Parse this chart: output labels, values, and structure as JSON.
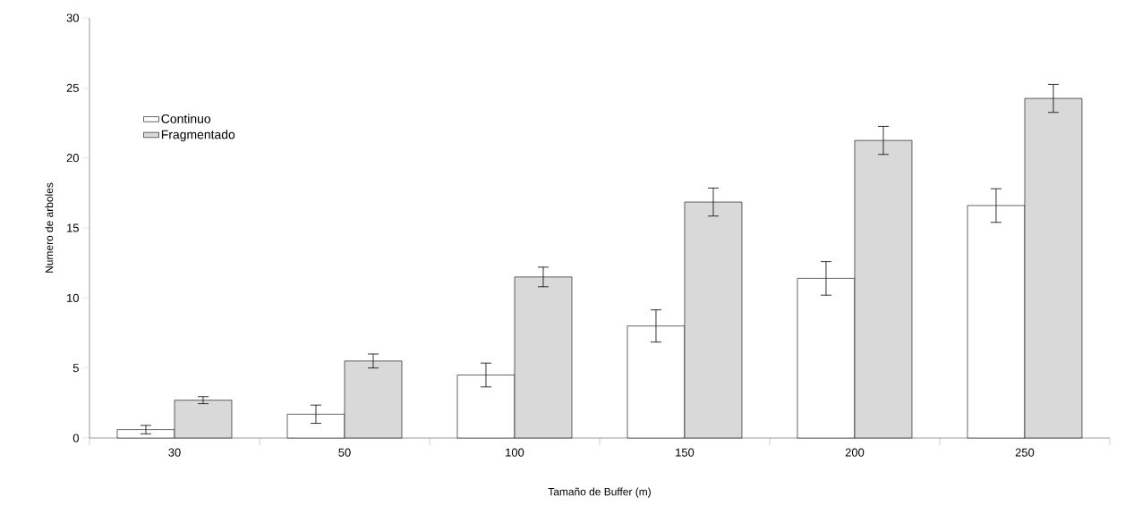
{
  "chart_data": {
    "type": "bar",
    "xlabel": "Tamaño de Buffer (m)",
    "ylabel": "Numero de arboles",
    "categories": [
      "30",
      "50",
      "100",
      "150",
      "200",
      "250"
    ],
    "series": [
      {
        "name": "Continuo",
        "color": "#ffffff",
        "values": [
          0.6,
          1.7,
          4.5,
          8.0,
          11.4,
          16.6
        ],
        "errors": [
          0.3,
          0.65,
          0.85,
          1.15,
          1.2,
          1.2
        ]
      },
      {
        "name": "Fragmentado",
        "color": "#d9d9d9",
        "values": [
          2.7,
          5.5,
          11.5,
          16.85,
          21.25,
          24.25
        ],
        "errors": [
          0.25,
          0.5,
          0.7,
          1.0,
          1.0,
          1.0
        ]
      }
    ],
    "ylim": [
      0,
      30
    ],
    "yticks": [
      0,
      5,
      10,
      15,
      20,
      25,
      30
    ],
    "grid": false,
    "legend": "top left"
  }
}
